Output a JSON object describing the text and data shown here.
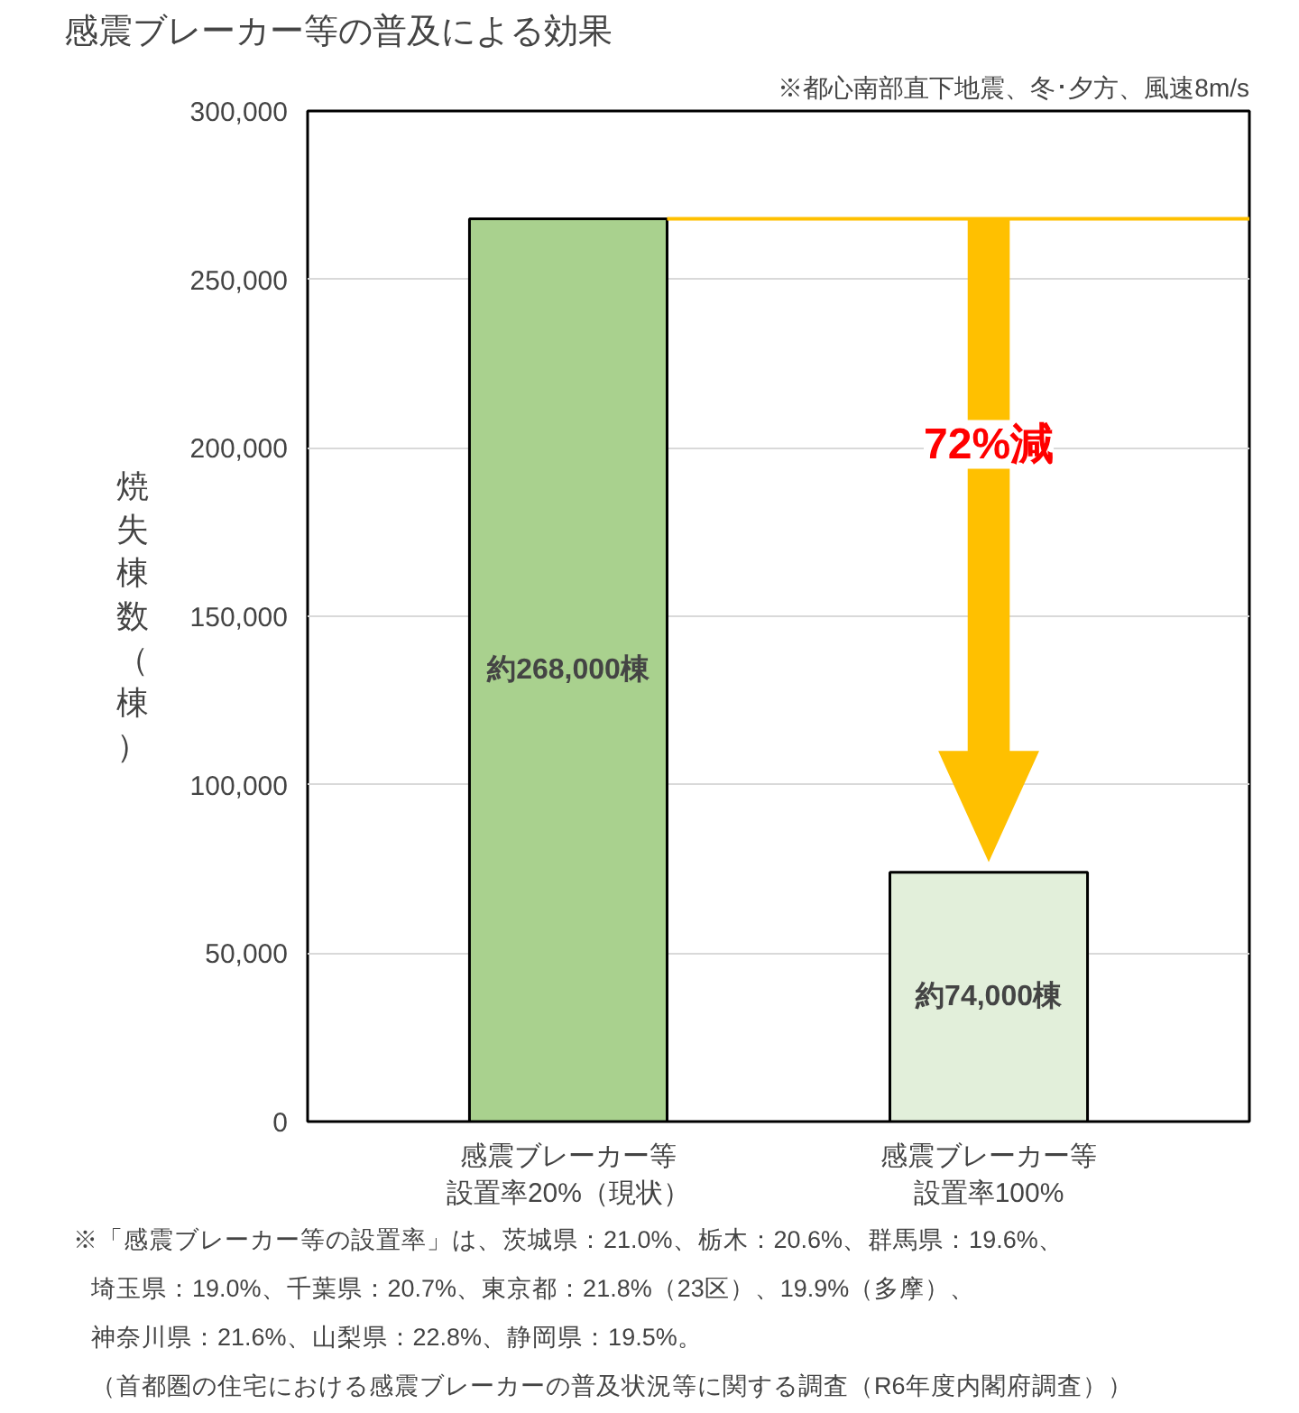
{
  "chart_data": {
    "type": "bar",
    "title": "感震ブレーカー等の普及による効果",
    "subtitle": "※都心南部直下地震、冬･夕方、風速8m/s",
    "ylabel": "焼失棟数（棟）",
    "categories": [
      "感震ブレーカー等設置率20%（現状）",
      "感震ブレーカー等設置率100%"
    ],
    "values": [
      268000,
      74000
    ],
    "colors": [
      "#a9d18e",
      "#e2efda"
    ],
    "value_labels": [
      "約268,000棟",
      "約74,000棟"
    ],
    "ylim": [
      0,
      300000
    ],
    "yticks": [
      0,
      {
        "value": 50000,
        "label": "50,000"
      },
      {
        "value": 100000,
        "label": "100,000"
      },
      {
        "value": 150000,
        "label": "150,000"
      },
      {
        "value": 200000,
        "label": "200,000"
      },
      {
        "value": 250000,
        "label": "250,000"
      },
      {
        "value": 300000,
        "label": "300,000"
      }
    ],
    "grid": "y",
    "ref_lines": [
      {
        "axis": "y",
        "value": 268000,
        "color": "#ffc000"
      }
    ],
    "annotations": [
      "72%減",
      "※「感震ブレーカー等の設置率」は、茨城県：21.0%、栃木：20.6%、群馬県：19.6%、",
      "埼玉県：19.0%、千葉県：20.7%、東京都：21.8%（23区）、19.9%（多摩）、",
      "神奈川県：21.6%、山梨県：22.8%、静岡県：19.5%。",
      "（首都圏の住宅における感震ブレーカーの普及状況等に関する調査（R6年度内閣府調査））"
    ]
  }
}
